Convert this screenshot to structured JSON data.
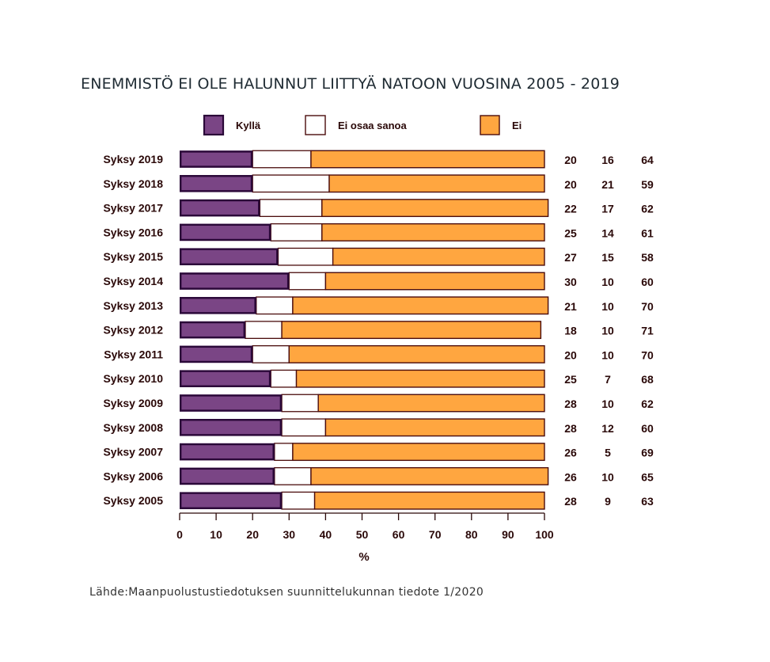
{
  "chart_data": {
    "type": "bar",
    "stacked": true,
    "orientation": "horizontal",
    "title": "ENEMMISTÖ EI OLE HALUNNUT LIITTYÄ NATOON VUOSINA 2005 - 2019",
    "source": "Lähde:Maanpuolustustiedotuksen suunnittelukunnan tiedote 1/2020",
    "xlabel": "%",
    "xlim": [
      0,
      100
    ],
    "xticks": [
      "0",
      "10",
      "20",
      "30",
      "40",
      "50",
      "60",
      "70",
      "80",
      "90",
      "100"
    ],
    "legend_position": "top",
    "categories": [
      "Syksy 2019",
      "Syksy 2018",
      "Syksy 2017",
      "Syksy 2016",
      "Syksy 2015",
      "Syksy 2014",
      "Syksy 2013",
      "Syksy 2012",
      "Syksy 2011",
      "Syksy 2010",
      "Syksy 2009",
      "Syksy 2008",
      "Syksy 2007",
      "Syksy 2006",
      "Syksy 2005"
    ],
    "series": [
      {
        "name": "Kyllä",
        "color": "#7a4585",
        "values": [
          20,
          20,
          22,
          25,
          27,
          30,
          21,
          18,
          20,
          25,
          28,
          28,
          26,
          26,
          28
        ]
      },
      {
        "name": "Ei osaa sanoa",
        "color": "#ffffff",
        "values": [
          16,
          21,
          17,
          14,
          15,
          10,
          10,
          10,
          10,
          7,
          10,
          12,
          5,
          10,
          9
        ]
      },
      {
        "name": "Ei",
        "color": "#ffa640",
        "values": [
          64,
          59,
          62,
          61,
          58,
          60,
          70,
          71,
          70,
          68,
          62,
          60,
          69,
          65,
          63
        ]
      }
    ]
  }
}
